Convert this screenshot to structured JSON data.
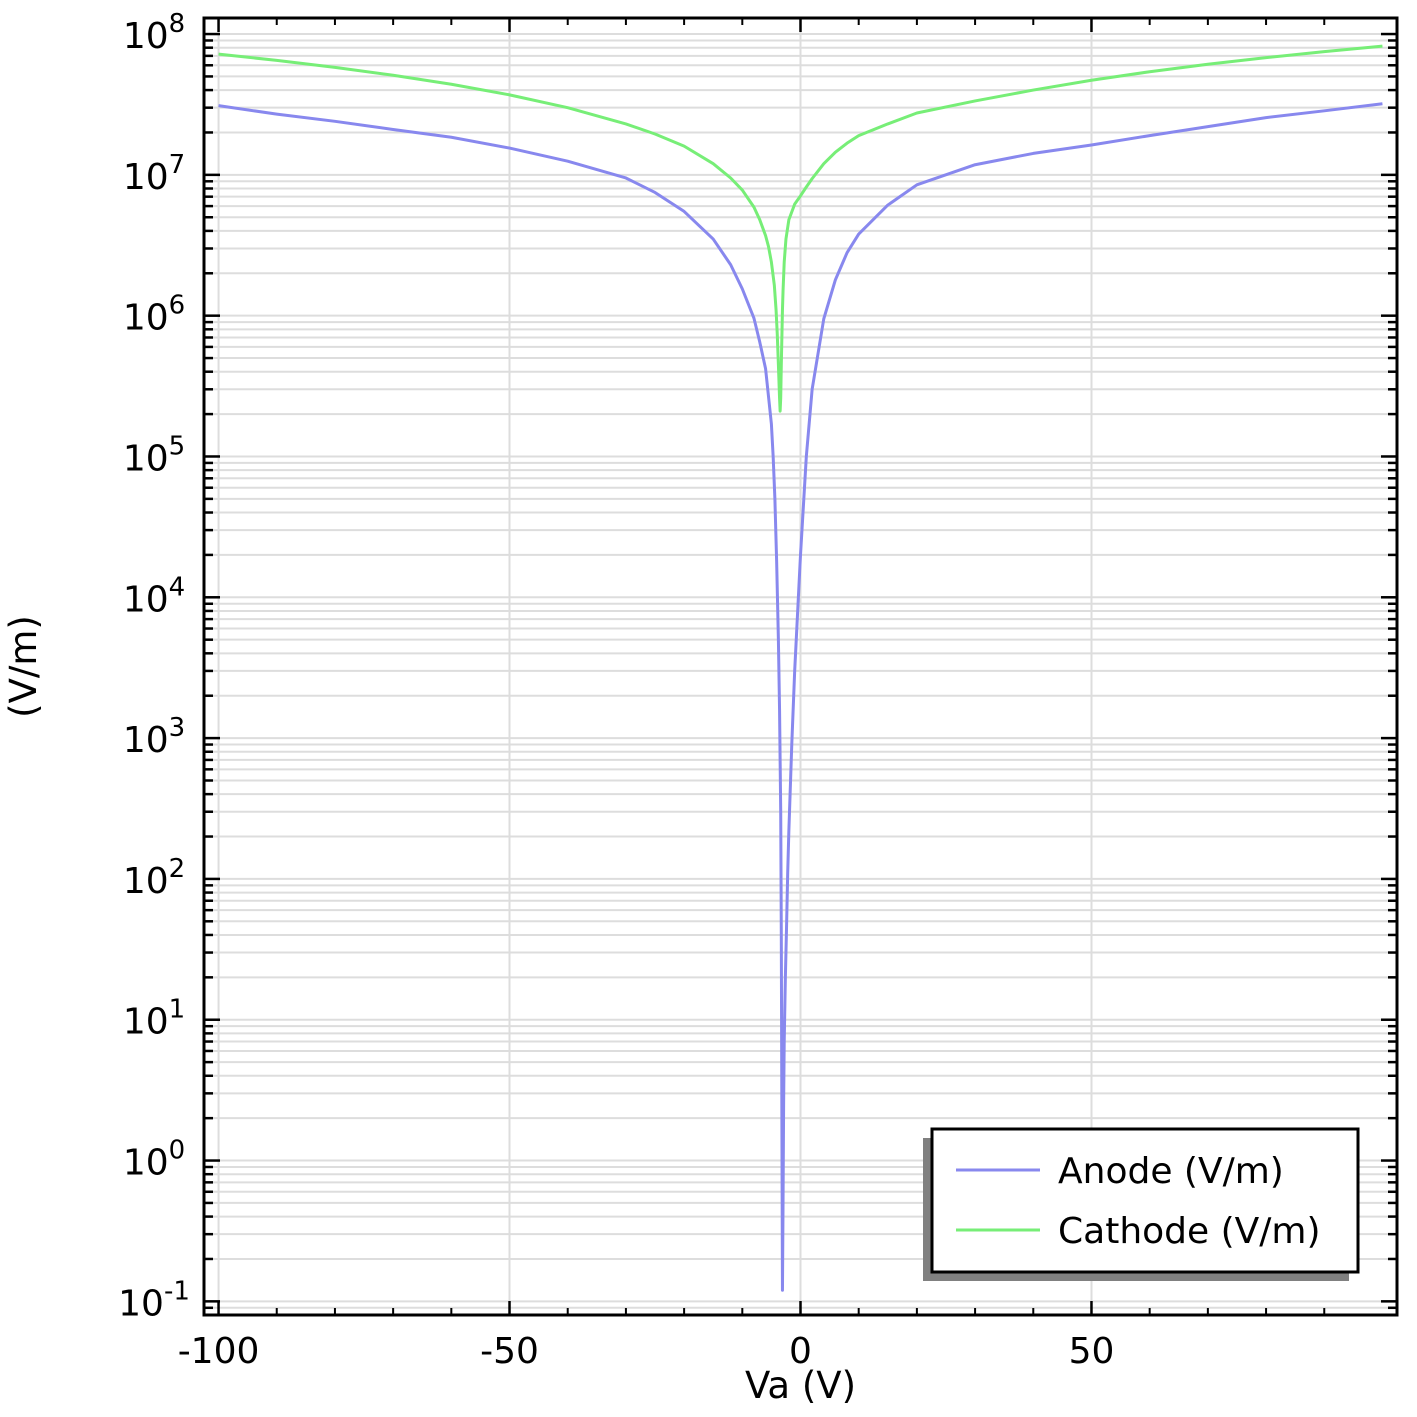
{
  "chart_data": {
    "type": "line",
    "title": "",
    "xlabel": "Va (V)",
    "ylabel": "(V/m)",
    "xlim": [
      -102.5,
      102.5
    ],
    "ylim": [
      0.08,
      130000000
    ],
    "yscale": "log",
    "grid": true,
    "legend_position": "bottom-right",
    "x_ticks": [
      {
        "value": -100,
        "label": "-100"
      },
      {
        "value": -50,
        "label": "-50"
      },
      {
        "value": 0,
        "label": "0"
      },
      {
        "value": 50,
        "label": "50"
      }
    ],
    "y_ticks": [
      {
        "exp": -1,
        "base": "10",
        "sup": "-1"
      },
      {
        "exp": 0,
        "base": "10",
        "sup": "0"
      },
      {
        "exp": 1,
        "base": "10",
        "sup": "1"
      },
      {
        "exp": 2,
        "base": "10",
        "sup": "2"
      },
      {
        "exp": 3,
        "base": "10",
        "sup": "3"
      },
      {
        "exp": 4,
        "base": "10",
        "sup": "4"
      },
      {
        "exp": 5,
        "base": "10",
        "sup": "5"
      },
      {
        "exp": 6,
        "base": "10",
        "sup": "6"
      },
      {
        "exp": 7,
        "base": "10",
        "sup": "7"
      },
      {
        "exp": 8,
        "base": "10",
        "sup": "8"
      }
    ],
    "series": [
      {
        "name": "Anode (V/m)",
        "color": "#8888ee",
        "x": [
          -100,
          -90,
          -80,
          -70,
          -60,
          -50,
          -40,
          -30,
          -25,
          -20,
          -15,
          -12,
          -10,
          -8,
          -7,
          -6,
          -5,
          -4.7,
          -4.4,
          -4.1,
          -3.8,
          -3.6,
          -3.4,
          -3.3,
          -3.2,
          -3.1,
          -3.0,
          -2.9,
          -2.8,
          -2.6,
          -2.4,
          -2.2,
          -2.0,
          -1.5,
          -1.0,
          0,
          1,
          2,
          4,
          6,
          8,
          10,
          15,
          20,
          30,
          40,
          50,
          60,
          70,
          80,
          90,
          100
        ],
        "y": [
          31000000,
          27000000,
          24000000,
          21000000,
          18500000,
          15500000,
          12500000,
          9500000,
          7500000,
          5500000,
          3500000,
          2300000,
          1550000,
          960000,
          650000,
          420000,
          170000,
          100000,
          50000,
          18000,
          5000,
          1600,
          300,
          40,
          2,
          0.12,
          0.5,
          2.5,
          7,
          20,
          45,
          110,
          220,
          900,
          3000,
          20000,
          100000,
          300000,
          950000,
          1800000,
          2800000,
          3800000,
          6100000,
          8500000,
          11800000,
          14200000,
          16300000,
          19000000,
          22000000,
          25500000,
          28500000,
          32000000
        ]
      },
      {
        "name": "Cathode (V/m)",
        "color": "#77ee77",
        "x": [
          -100,
          -90,
          -80,
          -70,
          -60,
          -50,
          -40,
          -30,
          -25,
          -20,
          -15,
          -12,
          -10,
          -8,
          -7,
          -6,
          -5.5,
          -5,
          -4.5,
          -4.2,
          -4.0,
          -3.8,
          -3.6,
          -3.5,
          -3.4,
          -3.3,
          -3.1,
          -3.0,
          -2.8,
          -2.5,
          -2.0,
          -1.0,
          0,
          1,
          2,
          4,
          6,
          8,
          10,
          15,
          20,
          30,
          40,
          50,
          60,
          70,
          80,
          90,
          100
        ],
        "y": [
          72000000,
          65000000,
          58000000,
          51000000,
          44000000,
          37000000,
          30000000,
          23000000,
          19500000,
          16000000,
          12000000,
          9500000,
          7800000,
          5900000,
          4800000,
          3700000,
          3100000,
          2400000,
          1650000,
          1100000,
          750000,
          450000,
          260000,
          210000,
          260000,
          450000,
          1100000,
          1500000,
          2400000,
          3500000,
          4800000,
          6200000,
          7100000,
          8200000,
          9400000,
          12000000,
          14500000,
          16800000,
          19000000,
          23000000,
          27500000,
          33500000,
          40000000,
          47000000,
          54000000,
          61000000,
          68000000,
          75000000,
          82000000
        ]
      }
    ]
  }
}
